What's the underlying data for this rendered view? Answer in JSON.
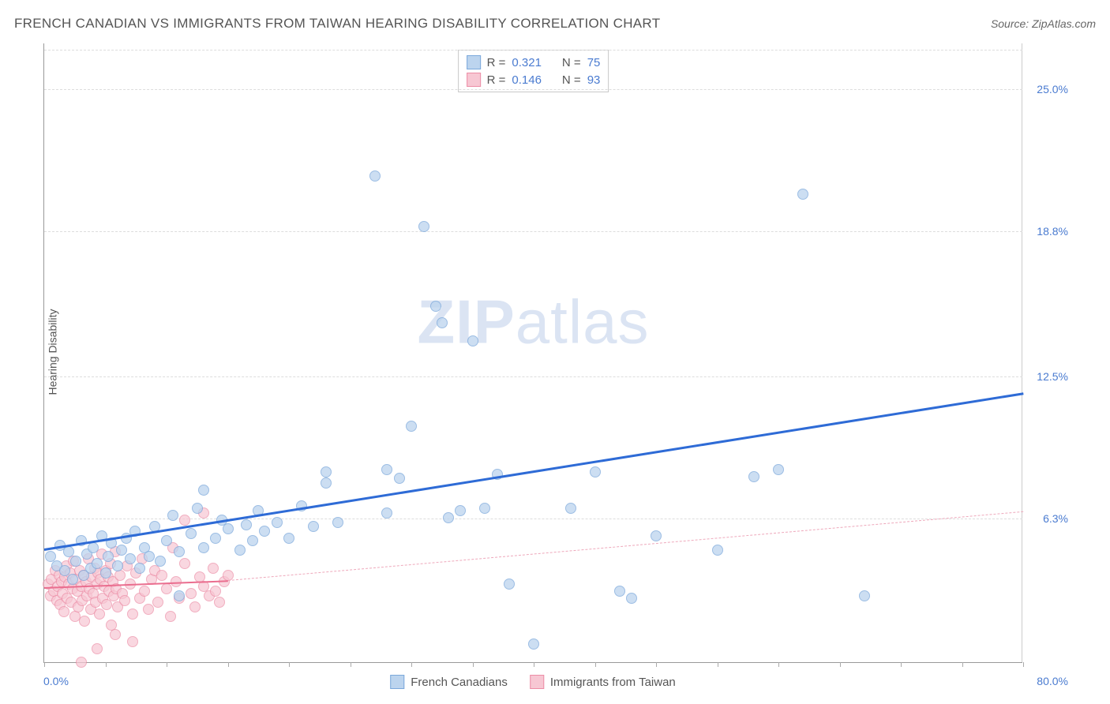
{
  "header": {
    "title": "FRENCH CANADIAN VS IMMIGRANTS FROM TAIWAN HEARING DISABILITY CORRELATION CHART",
    "source_prefix": "Source: ",
    "source_name": "ZipAtlas.com"
  },
  "axes": {
    "y_label": "Hearing Disability",
    "x_min_label": "0.0%",
    "x_max_label": "80.0%",
    "x_min": 0,
    "x_max": 80,
    "y_min": 0,
    "y_max": 27,
    "y_ticks": [
      {
        "value": 6.3,
        "label": "6.3%"
      },
      {
        "value": 12.5,
        "label": "12.5%"
      },
      {
        "value": 18.8,
        "label": "18.8%"
      },
      {
        "value": 25.0,
        "label": "25.0%"
      }
    ],
    "x_tick_positions": [
      0,
      5,
      10,
      15,
      20,
      25,
      30,
      35,
      40,
      45,
      50,
      55,
      60,
      65,
      70,
      75,
      80
    ],
    "grid_color": "#dddddd"
  },
  "watermark": {
    "zip": "ZIP",
    "atlas": "atlas"
  },
  "series": {
    "blue": {
      "name": "French Canadians",
      "fill": "#bcd4ee",
      "stroke": "#7ba8db",
      "marker_radius": 7,
      "marker_opacity": 0.75,
      "trend": {
        "x1": 0,
        "y1": 5.0,
        "x2": 80,
        "y2": 11.8,
        "color": "#2e6bd6",
        "width": 3,
        "style": "solid"
      },
      "R": "0.321",
      "N": "75",
      "points": [
        [
          0.5,
          4.6
        ],
        [
          1,
          4.2
        ],
        [
          1.3,
          5.1
        ],
        [
          1.7,
          4.0
        ],
        [
          2,
          4.8
        ],
        [
          2.3,
          3.6
        ],
        [
          2.6,
          4.4
        ],
        [
          3,
          5.3
        ],
        [
          3.2,
          3.8
        ],
        [
          3.5,
          4.7
        ],
        [
          3.8,
          4.1
        ],
        [
          4,
          5.0
        ],
        [
          4.3,
          4.3
        ],
        [
          4.7,
          5.5
        ],
        [
          5,
          3.9
        ],
        [
          5.2,
          4.6
        ],
        [
          5.5,
          5.2
        ],
        [
          6,
          4.2
        ],
        [
          6.3,
          4.9
        ],
        [
          6.7,
          5.4
        ],
        [
          7,
          4.5
        ],
        [
          7.4,
          5.7
        ],
        [
          7.8,
          4.1
        ],
        [
          8.2,
          5.0
        ],
        [
          8.6,
          4.6
        ],
        [
          9,
          5.9
        ],
        [
          9.5,
          4.4
        ],
        [
          10,
          5.3
        ],
        [
          10.5,
          6.4
        ],
        [
          11,
          4.8
        ],
        [
          11,
          2.9
        ],
        [
          12,
          5.6
        ],
        [
          12.5,
          6.7
        ],
        [
          13,
          5.0
        ],
        [
          13,
          7.5
        ],
        [
          14,
          5.4
        ],
        [
          14.5,
          6.2
        ],
        [
          15,
          5.8
        ],
        [
          16,
          4.9
        ],
        [
          16.5,
          6.0
        ],
        [
          17,
          5.3
        ],
        [
          17.5,
          6.6
        ],
        [
          18,
          5.7
        ],
        [
          19,
          6.1
        ],
        [
          20,
          5.4
        ],
        [
          21,
          6.8
        ],
        [
          22,
          5.9
        ],
        [
          23,
          7.8
        ],
        [
          23,
          8.3
        ],
        [
          24,
          6.1
        ],
        [
          27,
          21.2
        ],
        [
          28,
          6.5
        ],
        [
          28,
          8.4
        ],
        [
          29,
          8.0
        ],
        [
          30,
          10.3
        ],
        [
          31,
          19.0
        ],
        [
          32,
          15.5
        ],
        [
          32.5,
          14.8
        ],
        [
          33,
          6.3
        ],
        [
          34,
          6.6
        ],
        [
          35,
          14.0
        ],
        [
          36,
          6.7
        ],
        [
          37,
          8.2
        ],
        [
          38,
          3.4
        ],
        [
          40,
          0.8
        ],
        [
          43,
          6.7
        ],
        [
          45,
          8.3
        ],
        [
          47,
          3.1
        ],
        [
          48,
          2.8
        ],
        [
          50,
          5.5
        ],
        [
          55,
          4.9
        ],
        [
          58,
          8.1
        ],
        [
          60,
          8.4
        ],
        [
          62,
          20.4
        ],
        [
          67,
          2.9
        ]
      ]
    },
    "pink": {
      "name": "Immigrants from Taiwan",
      "fill": "#f7c7d3",
      "stroke": "#ec8da6",
      "marker_radius": 7,
      "marker_opacity": 0.7,
      "trend_solid": {
        "x1": 0,
        "y1": 3.3,
        "x2": 15,
        "y2": 3.6,
        "color": "#ea6e8f",
        "width": 2,
        "style": "solid"
      },
      "trend_dashed": {
        "x1": 15,
        "y1": 3.6,
        "x2": 80,
        "y2": 6.6,
        "color": "#eea8bb",
        "width": 1,
        "style": "dashed"
      },
      "R": "0.146",
      "N": "93",
      "points": [
        [
          0.3,
          3.4
        ],
        [
          0.5,
          2.9
        ],
        [
          0.6,
          3.6
        ],
        [
          0.8,
          3.1
        ],
        [
          0.9,
          4.0
        ],
        [
          1.0,
          2.7
        ],
        [
          1.1,
          3.3
        ],
        [
          1.2,
          3.8
        ],
        [
          1.3,
          2.5
        ],
        [
          1.4,
          3.5
        ],
        [
          1.5,
          3.0
        ],
        [
          1.6,
          2.2
        ],
        [
          1.7,
          3.7
        ],
        [
          1.8,
          4.2
        ],
        [
          1.9,
          2.8
        ],
        [
          2.0,
          3.4
        ],
        [
          2.1,
          3.9
        ],
        [
          2.2,
          2.6
        ],
        [
          2.3,
          3.2
        ],
        [
          2.4,
          4.4
        ],
        [
          2.5,
          2.0
        ],
        [
          2.6,
          3.6
        ],
        [
          2.7,
          3.1
        ],
        [
          2.8,
          2.4
        ],
        [
          2.9,
          4.0
        ],
        [
          3.0,
          3.3
        ],
        [
          3.1,
          2.7
        ],
        [
          3.2,
          3.8
        ],
        [
          3.3,
          1.8
        ],
        [
          3.4,
          3.5
        ],
        [
          3.5,
          2.9
        ],
        [
          3.6,
          4.5
        ],
        [
          3.7,
          3.2
        ],
        [
          3.8,
          2.3
        ],
        [
          3.9,
          3.7
        ],
        [
          4.0,
          3.0
        ],
        [
          4.1,
          4.1
        ],
        [
          4.2,
          2.6
        ],
        [
          4.3,
          3.4
        ],
        [
          4.4,
          3.9
        ],
        [
          4.5,
          2.1
        ],
        [
          4.6,
          3.6
        ],
        [
          4.7,
          4.7
        ],
        [
          4.8,
          2.8
        ],
        [
          4.9,
          3.3
        ],
        [
          5.0,
          4.0
        ],
        [
          5.1,
          2.5
        ],
        [
          5.2,
          3.7
        ],
        [
          5.3,
          3.1
        ],
        [
          5.4,
          4.3
        ],
        [
          5.5,
          1.6
        ],
        [
          5.6,
          3.5
        ],
        [
          5.7,
          2.9
        ],
        [
          5.8,
          4.8
        ],
        [
          5.9,
          3.2
        ],
        [
          6.0,
          2.4
        ],
        [
          6.2,
          3.8
        ],
        [
          6.4,
          3.0
        ],
        [
          6.6,
          2.7
        ],
        [
          6.8,
          4.2
        ],
        [
          7.0,
          3.4
        ],
        [
          7.2,
          2.1
        ],
        [
          7.5,
          3.9
        ],
        [
          7.8,
          2.8
        ],
        [
          8.0,
          4.5
        ],
        [
          8.2,
          3.1
        ],
        [
          8.5,
          2.3
        ],
        [
          8.8,
          3.6
        ],
        [
          9.0,
          4.0
        ],
        [
          9.3,
          2.6
        ],
        [
          9.6,
          3.8
        ],
        [
          10,
          3.2
        ],
        [
          10.3,
          2.0
        ],
        [
          10.5,
          5.0
        ],
        [
          10.8,
          3.5
        ],
        [
          11,
          2.8
        ],
        [
          11.5,
          4.3
        ],
        [
          11.5,
          6.2
        ],
        [
          12,
          3.0
        ],
        [
          12.3,
          2.4
        ],
        [
          12.7,
          3.7
        ],
        [
          13,
          6.5
        ],
        [
          13,
          3.3
        ],
        [
          13.5,
          2.9
        ],
        [
          13.8,
          4.1
        ],
        [
          14,
          3.1
        ],
        [
          14.3,
          2.6
        ],
        [
          14.7,
          3.5
        ],
        [
          15,
          3.8
        ],
        [
          4.3,
          0.6
        ],
        [
          5.8,
          1.2
        ],
        [
          7.2,
          0.9
        ],
        [
          3,
          0.0
        ]
      ]
    }
  },
  "legend_top": {
    "rows": [
      {
        "swatch_fill": "#bcd4ee",
        "swatch_stroke": "#7ba8db",
        "r_label": "R =",
        "r_val": "0.321",
        "n_label": "N =",
        "n_val": "75"
      },
      {
        "swatch_fill": "#f7c7d3",
        "swatch_stroke": "#ec8da6",
        "r_label": "R =",
        "r_val": "0.146",
        "n_label": "N =",
        "n_val": "93"
      }
    ]
  },
  "legend_bottom": {
    "items": [
      {
        "swatch_fill": "#bcd4ee",
        "swatch_stroke": "#7ba8db",
        "label": "French Canadians"
      },
      {
        "swatch_fill": "#f7c7d3",
        "swatch_stroke": "#ec8da6",
        "label": "Immigrants from Taiwan"
      }
    ]
  }
}
